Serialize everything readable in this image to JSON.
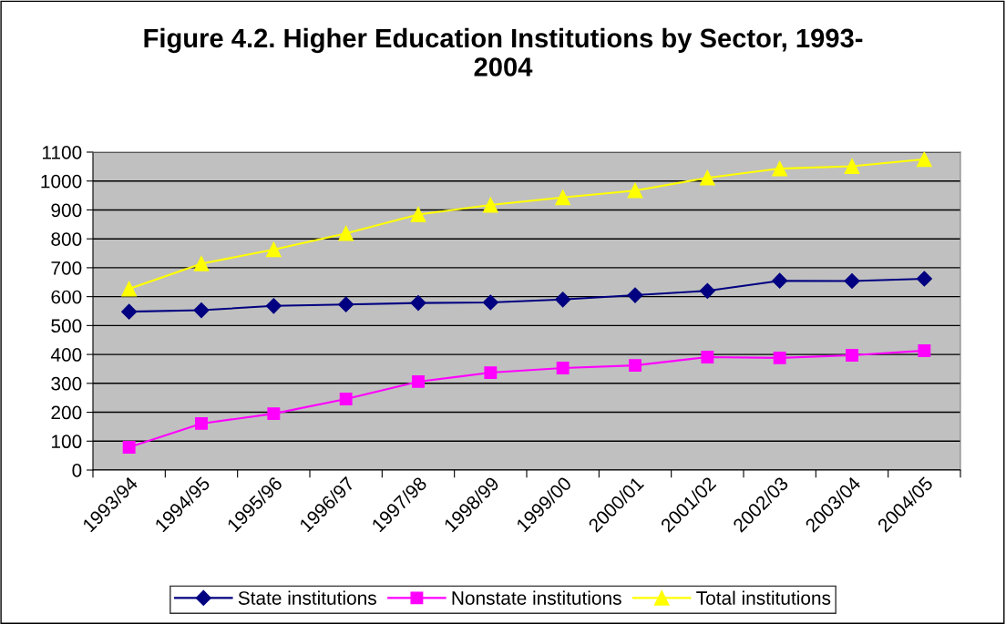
{
  "chart_data": {
    "type": "line",
    "title": "Figure 4.2. Higher Education Institutions by Sector, 1993-\n2004",
    "categories": [
      "1993/94",
      "1994/95",
      "1995/96",
      "1996/97",
      "1997/98",
      "1998/99",
      "1999/00",
      "2000/01",
      "2001/02",
      "2002/03",
      "2003/04",
      "2004/05"
    ],
    "series": [
      {
        "name": "State institutions",
        "color": "#000080",
        "marker": "diamond",
        "values": [
          548,
          553,
          568,
          573,
          578,
          580,
          590,
          605,
          620,
          655,
          654,
          662
        ]
      },
      {
        "name": "Nonstate institutions",
        "color": "#ff00ff",
        "marker": "square",
        "values": [
          79,
          161,
          195,
          246,
          306,
          337,
          353,
          362,
          391,
          388,
          397,
          413
        ]
      },
      {
        "name": "Total institutions",
        "color": "#ffff00",
        "marker": "triangle",
        "values": [
          627,
          714,
          763,
          819,
          884,
          917,
          943,
          967,
          1011,
          1043,
          1051,
          1075
        ]
      }
    ],
    "ylim": [
      0,
      1100
    ],
    "yticks": [
      0,
      100,
      200,
      300,
      400,
      500,
      600,
      700,
      800,
      900,
      1000,
      1100
    ],
    "grid": "y",
    "legend": "bottom",
    "line_style": "solid"
  }
}
